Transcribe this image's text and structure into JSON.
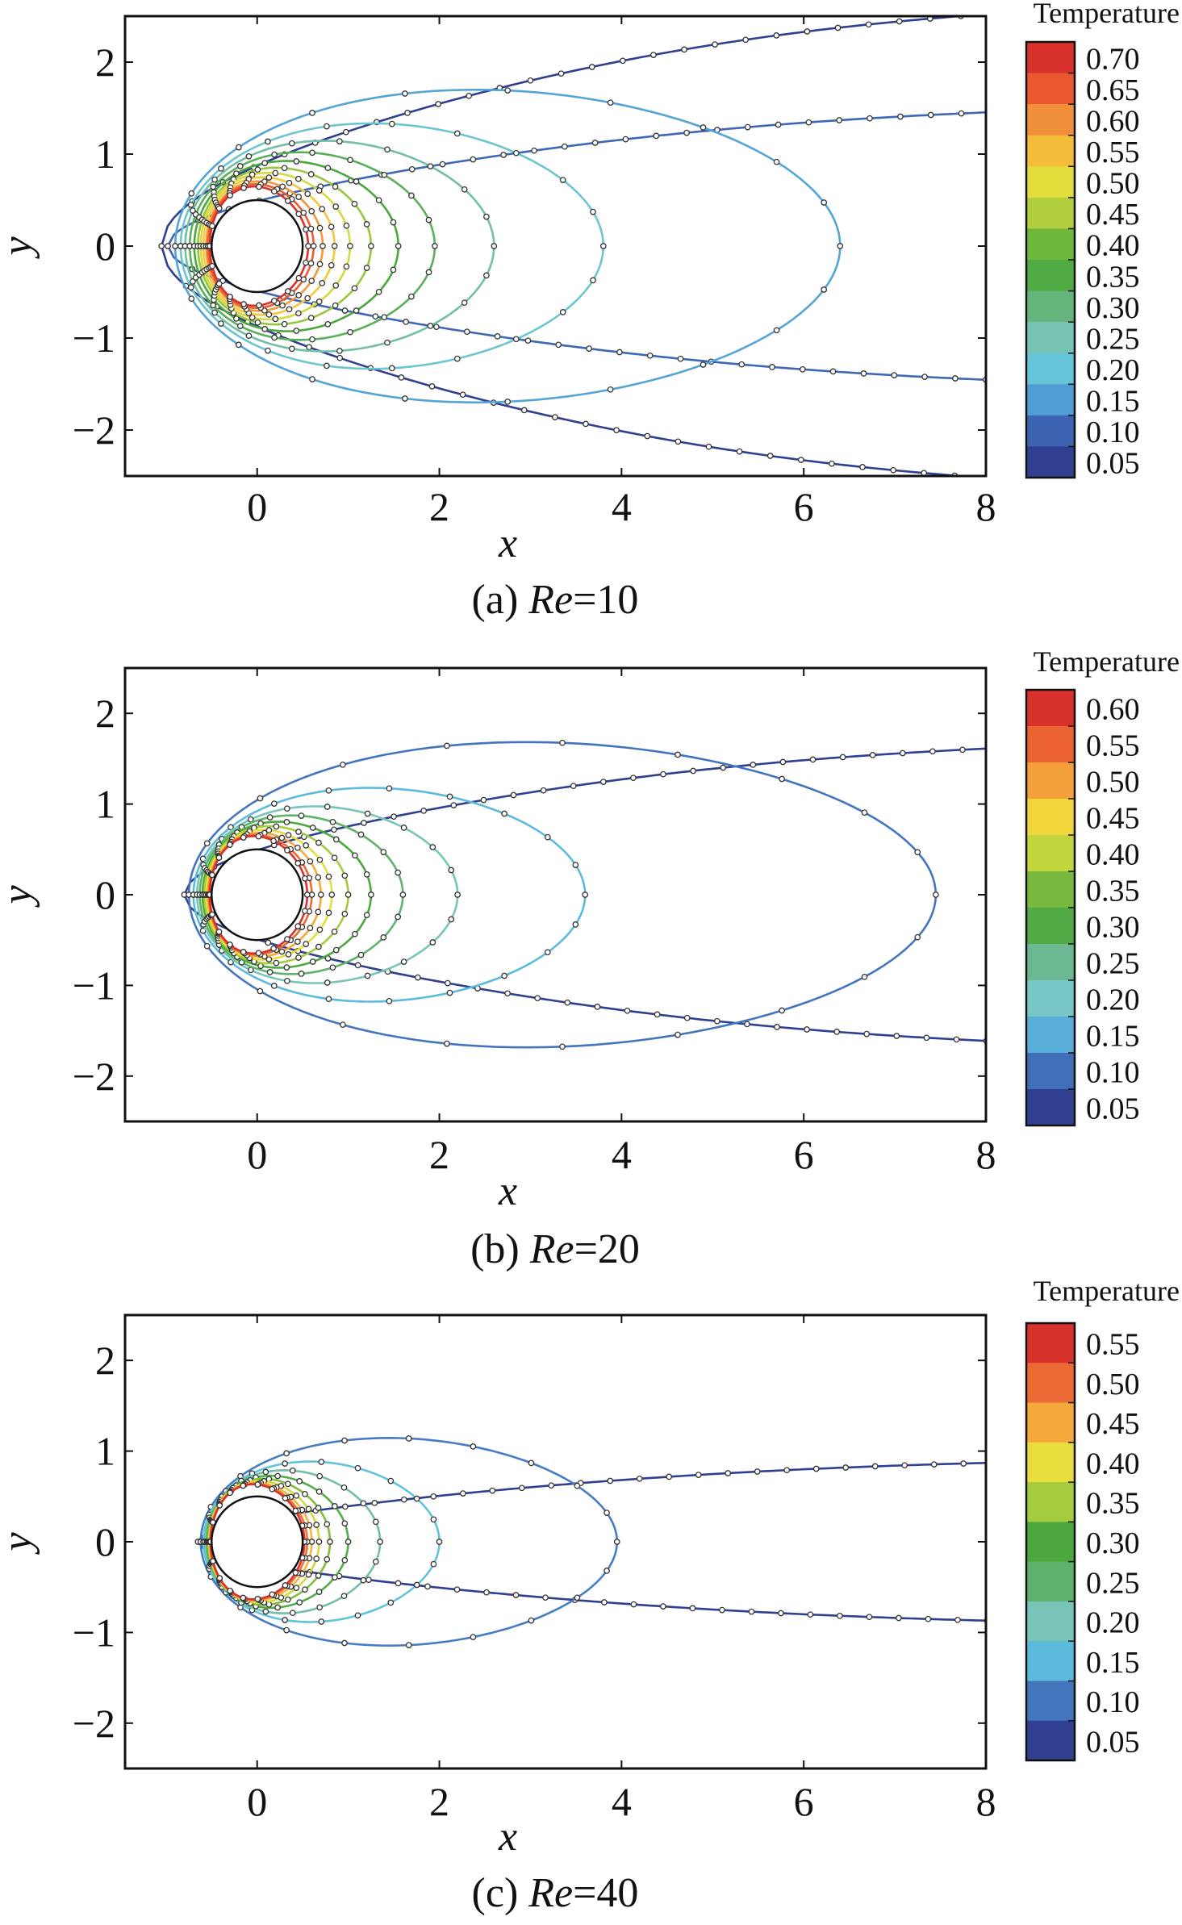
{
  "chart_data": [
    {
      "type": "contour",
      "caption": "(a) Re=10",
      "caption_prefix": "(a) ",
      "caption_italic": "Re",
      "caption_suffix": "=10",
      "xlabel": "x",
      "ylabel": "y",
      "xlim": [
        -1.45,
        8
      ],
      "ylim": [
        -2.5,
        2.5
      ],
      "xticks": [
        "0",
        "2",
        "4",
        "6",
        "8"
      ],
      "yticks": [
        "2",
        "1",
        "0",
        "−1",
        "−2"
      ],
      "colorbar": {
        "title": "Temperature",
        "levels": [
          "0.70",
          "0.65",
          "0.60",
          "0.55",
          "0.50",
          "0.45",
          "0.40",
          "0.35",
          "0.30",
          "0.25",
          "0.20",
          "0.15",
          "0.10",
          "0.05"
        ]
      },
      "cylinder_radius": 0.5,
      "contours": [
        {
          "level": 0.05,
          "upstream_x": -1.05,
          "downstream_x": 8,
          "downstream_y_at_end": 2.55
        },
        {
          "level": 0.1,
          "upstream_x": -0.98,
          "downstream_x": 8,
          "downstream_y_at_end": 1.47
        },
        {
          "level": 0.15,
          "upstream_x": -0.9,
          "downstream_x": 6.4
        },
        {
          "level": 0.2,
          "upstream_x": -0.84,
          "downstream_x": 3.8
        },
        {
          "level": 0.25,
          "upstream_x": -0.79,
          "downstream_x": 2.6
        },
        {
          "level": 0.3,
          "upstream_x": -0.74,
          "downstream_x": 1.95
        },
        {
          "level": 0.35,
          "upstream_x": -0.69,
          "downstream_x": 1.55
        },
        {
          "level": 0.4,
          "upstream_x": -0.65,
          "downstream_x": 1.25
        },
        {
          "level": 0.45,
          "upstream_x": -0.62,
          "downstream_x": 1.02
        },
        {
          "level": 0.5,
          "upstream_x": -0.59,
          "downstream_x": 0.85
        },
        {
          "level": 0.55,
          "upstream_x": -0.56,
          "downstream_x": 0.72
        },
        {
          "level": 0.6,
          "upstream_x": -0.54,
          "downstream_x": 0.62
        },
        {
          "level": 0.65,
          "upstream_x": -0.52,
          "downstream_x": 0.56
        }
      ]
    },
    {
      "type": "contour",
      "caption": "(b) Re=20",
      "caption_prefix": "(b) ",
      "caption_italic": "Re",
      "caption_suffix": "=20",
      "xlabel": "x",
      "ylabel": "y",
      "xlim": [
        -1.45,
        8
      ],
      "ylim": [
        -2.5,
        2.5
      ],
      "xticks": [
        "0",
        "2",
        "4",
        "6",
        "8"
      ],
      "yticks": [
        "2",
        "1",
        "0",
        "−1",
        "−2"
      ],
      "colorbar": {
        "title": "Temperature",
        "levels": [
          "0.60",
          "0.55",
          "0.50",
          "0.45",
          "0.40",
          "0.35",
          "0.30",
          "0.25",
          "0.20",
          "0.15",
          "0.10",
          "0.05"
        ]
      },
      "cylinder_radius": 0.5,
      "contours": [
        {
          "level": 0.05,
          "upstream_x": -0.8,
          "downstream_x": 8,
          "downstream_y_at_end": 1.63
        },
        {
          "level": 0.1,
          "upstream_x": -0.75,
          "downstream_x": 7.45
        },
        {
          "level": 0.15,
          "upstream_x": -0.7,
          "downstream_x": 3.6
        },
        {
          "level": 0.2,
          "upstream_x": -0.66,
          "downstream_x": 2.2
        },
        {
          "level": 0.25,
          "upstream_x": -0.63,
          "downstream_x": 1.6
        },
        {
          "level": 0.3,
          "upstream_x": -0.6,
          "downstream_x": 1.25
        },
        {
          "level": 0.35,
          "upstream_x": -0.58,
          "downstream_x": 1.0
        },
        {
          "level": 0.4,
          "upstream_x": -0.56,
          "downstream_x": 0.82
        },
        {
          "level": 0.45,
          "upstream_x": -0.54,
          "downstream_x": 0.7
        },
        {
          "level": 0.5,
          "upstream_x": -0.53,
          "downstream_x": 0.6
        },
        {
          "level": 0.55,
          "upstream_x": -0.52,
          "downstream_x": 0.55
        }
      ]
    },
    {
      "type": "contour",
      "caption": "(c) Re=40",
      "caption_prefix": "(c) ",
      "caption_italic": "Re",
      "caption_suffix": "=40",
      "xlabel": "x",
      "ylabel": "y",
      "xlim": [
        -1.45,
        8
      ],
      "ylim": [
        -2.5,
        2.5
      ],
      "xticks": [
        "0",
        "2",
        "4",
        "6",
        "8"
      ],
      "yticks": [
        "2",
        "1",
        "0",
        "−1",
        "−2"
      ],
      "colorbar": {
        "title": "Temperature",
        "levels": [
          "0.55",
          "0.50",
          "0.45",
          "0.40",
          "0.35",
          "0.30",
          "0.25",
          "0.20",
          "0.15",
          "0.10",
          "0.05"
        ]
      },
      "cylinder_radius": 0.5,
      "contours": [
        {
          "level": 0.05,
          "upstream_x": -0.65,
          "downstream_x": 8,
          "downstream_y_at_end": 0.88
        },
        {
          "level": 0.1,
          "upstream_x": -0.62,
          "downstream_x": 3.95
        },
        {
          "level": 0.15,
          "upstream_x": -0.59,
          "downstream_x": 2.0
        },
        {
          "level": 0.2,
          "upstream_x": -0.57,
          "downstream_x": 1.35
        },
        {
          "level": 0.25,
          "upstream_x": -0.55,
          "downstream_x": 1.0
        },
        {
          "level": 0.3,
          "upstream_x": -0.54,
          "downstream_x": 0.8
        },
        {
          "level": 0.35,
          "upstream_x": -0.53,
          "downstream_x": 0.68
        },
        {
          "level": 0.4,
          "upstream_x": -0.52,
          "downstream_x": 0.6
        },
        {
          "level": 0.45,
          "upstream_x": -0.515,
          "downstream_x": 0.55
        },
        {
          "level": 0.5,
          "upstream_x": -0.51,
          "downstream_x": 0.52
        }
      ]
    }
  ],
  "colors": {
    "scale": [
      "#303f8f",
      "#3b5fb0",
      "#4f95d0",
      "#5fc3e0",
      "#7bc8bf",
      "#6db99a",
      "#56ad4d",
      "#4ba83c",
      "#8fc33f",
      "#c7d73c",
      "#f0df3c",
      "#f6b13a",
      "#f08a3a",
      "#e8542e",
      "#d9312b"
    ],
    "marker": "#333333",
    "cylinder_fill": "#ffffff"
  }
}
